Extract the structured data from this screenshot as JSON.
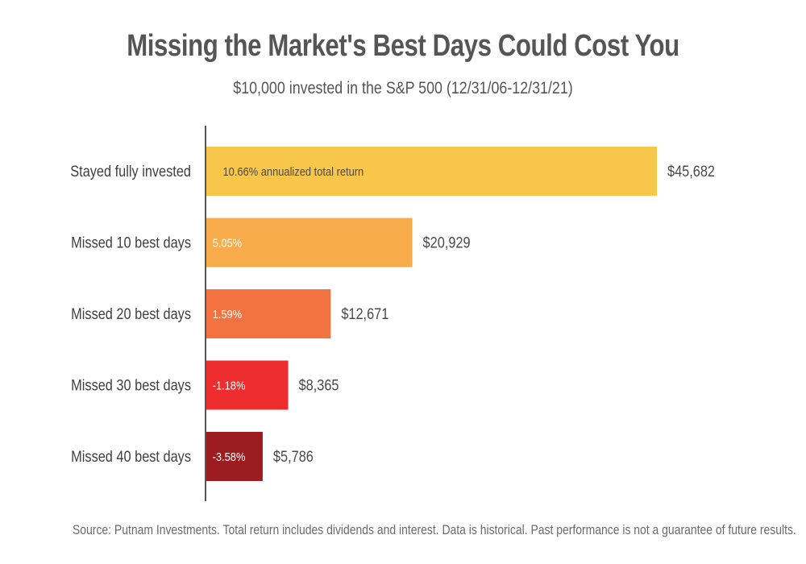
{
  "chart_data": {
    "type": "bar",
    "orientation": "horizontal",
    "title": "Missing the Market's Best Days Could Cost You",
    "subtitle": "$10,000 invested in the S&P 500 (12/31/06-12/31/21)",
    "categories": [
      "Stayed fully invested",
      "Missed 10 best days",
      "Missed 20 best days",
      "Missed 30 best days",
      "Missed 40 best days"
    ],
    "values": [
      45682,
      20929,
      12671,
      8365,
      5786
    ],
    "value_labels": [
      "$45,682",
      "$20,929",
      "$12,671",
      "$8,365",
      "$5,786"
    ],
    "bar_labels": [
      "10.66% annualized total return",
      "5.05%",
      "1.59%",
      "-1.18%",
      "-3.58%"
    ],
    "colors": [
      "#f7c64b",
      "#f8ab4a",
      "#f37340",
      "#ee2e2e",
      "#9c1c1f"
    ],
    "bar_label_colors": [
      "#4a4a4a",
      "#ffffff",
      "#ffffff",
      "#ffffff",
      "#ffffff"
    ],
    "xlim": [
      0,
      45682
    ],
    "grid": false
  },
  "footnote": "Source: Putnam Investments. Total return includes dividends and interest. Data is historical. Past performance is not a guarantee of future results."
}
